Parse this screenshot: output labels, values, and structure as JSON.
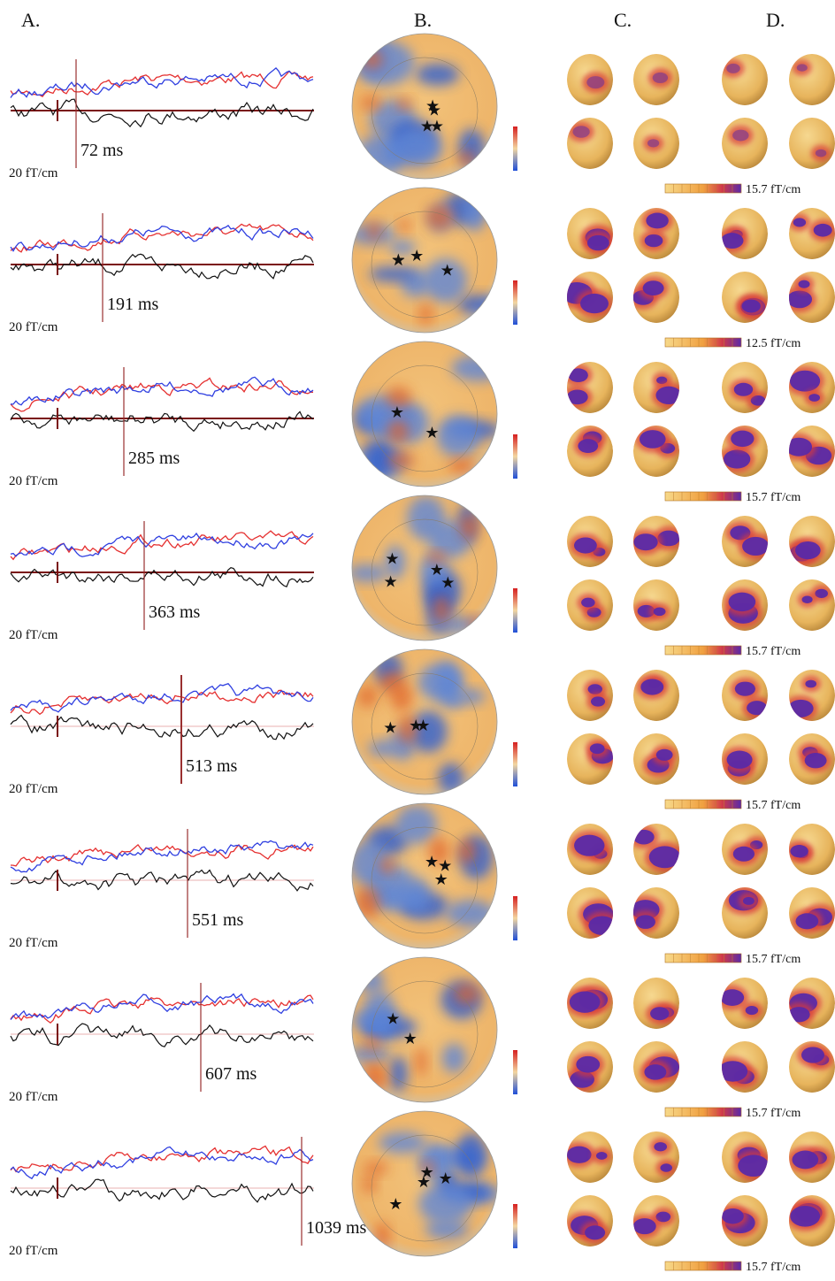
{
  "headers": [
    "A.",
    "B.",
    "C.",
    "D."
  ],
  "rows": [
    {
      "latency": "72 ms",
      "scale": "20 fT/cm",
      "colorbar": "15.7 fT/cm"
    },
    {
      "latency": "191 ms",
      "scale": "20 fT/cm",
      "colorbar": "12.5 fT/cm"
    },
    {
      "latency": "285 ms",
      "scale": "20 fT/cm",
      "colorbar": "15.7 fT/cm"
    },
    {
      "latency": "363 ms",
      "scale": "20 fT/cm",
      "colorbar": "15.7 fT/cm"
    },
    {
      "latency": "513 ms",
      "scale": "20 fT/cm",
      "colorbar": "15.7 fT/cm"
    },
    {
      "latency": "551 ms",
      "scale": "20 fT/cm",
      "colorbar": "15.7 fT/cm"
    },
    {
      "latency": "607 ms",
      "scale": "20 fT/cm",
      "colorbar": "15.7 fT/cm"
    },
    {
      "latency": "1039 ms",
      "scale": "20 fT/cm",
      "colorbar": "15.7 fT/cm"
    }
  ]
}
